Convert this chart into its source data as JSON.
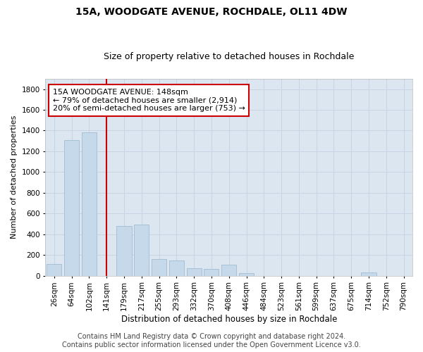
{
  "title1": "15A, WOODGATE AVENUE, ROCHDALE, OL11 4DW",
  "title2": "Size of property relative to detached houses in Rochdale",
  "xlabel": "Distribution of detached houses by size in Rochdale",
  "ylabel": "Number of detached properties",
  "categories": [
    "26sqm",
    "64sqm",
    "102sqm",
    "141sqm",
    "179sqm",
    "217sqm",
    "255sqm",
    "293sqm",
    "332sqm",
    "370sqm",
    "408sqm",
    "446sqm",
    "484sqm",
    "523sqm",
    "561sqm",
    "599sqm",
    "637sqm",
    "675sqm",
    "714sqm",
    "752sqm",
    "790sqm"
  ],
  "values": [
    110,
    1310,
    1380,
    0,
    480,
    490,
    160,
    145,
    75,
    65,
    105,
    25,
    0,
    0,
    0,
    0,
    0,
    0,
    35,
    0,
    0
  ],
  "bar_color": "#c5d9ea",
  "bar_edge_color": "#a0bdd4",
  "vline_x_idx": 3,
  "vline_color": "#cc0000",
  "annotation_text": "15A WOODGATE AVENUE: 148sqm\n← 79% of detached houses are smaller (2,914)\n20% of semi-detached houses are larger (753) →",
  "annotation_box_facecolor": "#ffffff",
  "annotation_box_edgecolor": "#cc0000",
  "ylim": [
    0,
    1900
  ],
  "yticks": [
    0,
    200,
    400,
    600,
    800,
    1000,
    1200,
    1400,
    1600,
    1800
  ],
  "grid_color": "#c8d4e4",
  "background_color": "#dce6f0",
  "footer_text": "Contains HM Land Registry data © Crown copyright and database right 2024.\nContains public sector information licensed under the Open Government Licence v3.0.",
  "title1_fontsize": 10,
  "title2_fontsize": 9,
  "xlabel_fontsize": 8.5,
  "ylabel_fontsize": 8,
  "tick_fontsize": 7.5,
  "annotation_fontsize": 8,
  "footer_fontsize": 7
}
